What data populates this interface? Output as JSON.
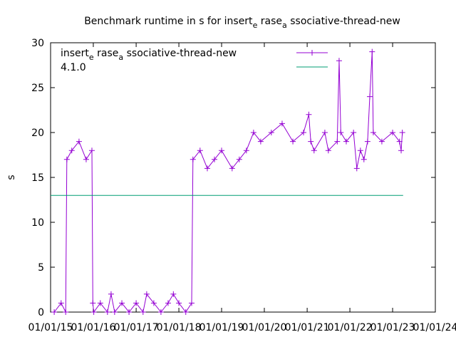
{
  "chart_data": {
    "type": "line",
    "title_parts": [
      {
        "text": "Benchmark runtime in s for insert",
        "sub": false
      },
      {
        "text": "e",
        "sub": true
      },
      {
        "text": " rase",
        "sub": false
      },
      {
        "text": "a",
        "sub": true
      },
      {
        "text": " ssociative-thread-new",
        "sub": false
      }
    ],
    "ylabel": "s",
    "xlabel": "",
    "ylim": [
      0,
      30
    ],
    "yticks": [
      0,
      5,
      10,
      15,
      20,
      25,
      30
    ],
    "xlim": [
      "2015-01-01",
      "2024-01-01"
    ],
    "xticks": [
      "01/01/15",
      "01/01/16",
      "01/01/17",
      "01/01/18",
      "01/01/19",
      "01/01/20",
      "01/01/21",
      "01/01/22",
      "01/01/23",
      "01/01/24"
    ],
    "grid": false,
    "legend_position": "top-right",
    "series": [
      {
        "name_parts": [
          {
            "text": "insert",
            "sub": false
          },
          {
            "text": "e",
            "sub": true
          },
          {
            "text": " rase",
            "sub": false
          },
          {
            "text": "a",
            "sub": true
          },
          {
            "text": " ssociative-thread-new",
            "sub": false
          }
        ],
        "color": "#9400d3",
        "marker": "plus",
        "points": [
          [
            "2015-02-01",
            0
          ],
          [
            "2015-04-01",
            1
          ],
          [
            "2015-05-10",
            0
          ],
          [
            "2015-05-20",
            17
          ],
          [
            "2015-07-01",
            18
          ],
          [
            "2015-09-01",
            19
          ],
          [
            "2015-11-01",
            17
          ],
          [
            "2015-12-20",
            18
          ],
          [
            "2015-12-28",
            1
          ],
          [
            "2016-01-05",
            0
          ],
          [
            "2016-03-01",
            1
          ],
          [
            "2016-05-01",
            0
          ],
          [
            "2016-06-01",
            2
          ],
          [
            "2016-07-01",
            0
          ],
          [
            "2016-09-01",
            1
          ],
          [
            "2016-11-01",
            0
          ],
          [
            "2017-01-01",
            1
          ],
          [
            "2017-03-01",
            0
          ],
          [
            "2017-04-01",
            2
          ],
          [
            "2017-06-01",
            1
          ],
          [
            "2017-08-01",
            0
          ],
          [
            "2017-10-01",
            1
          ],
          [
            "2017-11-15",
            2
          ],
          [
            "2018-01-01",
            1
          ],
          [
            "2018-03-01",
            0
          ],
          [
            "2018-04-20",
            1
          ],
          [
            "2018-05-01",
            17
          ],
          [
            "2018-07-01",
            18
          ],
          [
            "2018-09-01",
            16
          ],
          [
            "2018-11-01",
            17
          ],
          [
            "2019-01-01",
            18
          ],
          [
            "2019-04-01",
            16
          ],
          [
            "2019-06-01",
            17
          ],
          [
            "2019-08-01",
            18
          ],
          [
            "2019-10-01",
            20
          ],
          [
            "2019-12-01",
            19
          ],
          [
            "2020-03-01",
            20
          ],
          [
            "2020-06-01",
            21
          ],
          [
            "2020-09-01",
            19
          ],
          [
            "2020-12-01",
            20
          ],
          [
            "2021-01-15",
            22
          ],
          [
            "2021-02-01",
            19
          ],
          [
            "2021-03-01",
            18
          ],
          [
            "2021-06-01",
            20
          ],
          [
            "2021-07-01",
            18
          ],
          [
            "2021-09-15",
            19
          ],
          [
            "2021-10-01",
            28
          ],
          [
            "2021-10-15",
            20
          ],
          [
            "2021-12-01",
            19
          ],
          [
            "2022-02-01",
            20
          ],
          [
            "2022-03-01",
            16
          ],
          [
            "2022-04-01",
            18
          ],
          [
            "2022-05-01",
            17
          ],
          [
            "2022-06-01",
            19
          ],
          [
            "2022-06-20",
            24
          ],
          [
            "2022-07-10",
            29
          ],
          [
            "2022-07-20",
            20
          ],
          [
            "2022-10-01",
            19
          ],
          [
            "2023-01-01",
            20
          ],
          [
            "2023-03-01",
            19
          ],
          [
            "2023-03-15",
            18
          ],
          [
            "2023-03-25",
            20
          ]
        ]
      },
      {
        "name": "4.1.0",
        "color": "#009e73",
        "marker": "none",
        "points": [
          [
            "2015-01-01",
            13
          ],
          [
            "2023-04-01",
            13
          ]
        ]
      }
    ]
  }
}
